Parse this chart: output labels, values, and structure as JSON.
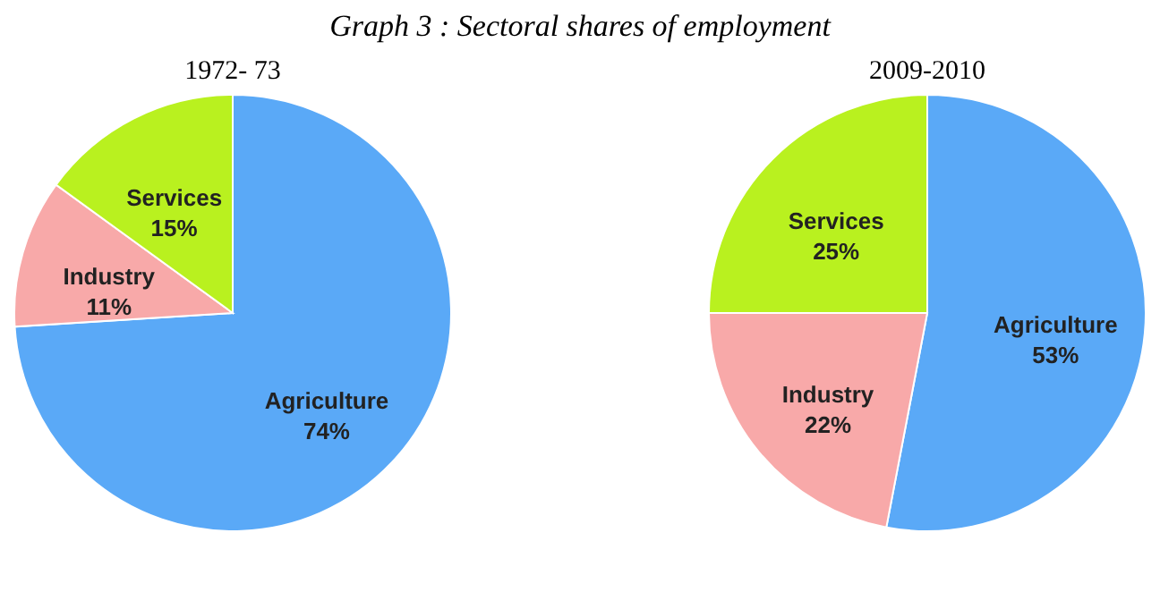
{
  "chart_data": [
    {
      "type": "pie",
      "title": "1972- 73",
      "annotations": [
        "Graph 3 : Sectoral shares of employment"
      ],
      "categories": [
        "Agriculture",
        "Industry",
        "Services"
      ],
      "values": [
        74,
        11,
        15
      ],
      "value_labels": [
        "74%",
        "11%",
        "15%"
      ],
      "colors": [
        "#5aa9f7",
        "#f8a9a9",
        "#b9f11f"
      ]
    },
    {
      "type": "pie",
      "title": "2009-2010",
      "categories": [
        "Agriculture",
        "Industry",
        "Services"
      ],
      "values": [
        53,
        22,
        25
      ],
      "value_labels": [
        "53%",
        "22%",
        "25%"
      ],
      "colors": [
        "#5aa9f7",
        "#f8a9a9",
        "#b9f11f"
      ]
    }
  ]
}
